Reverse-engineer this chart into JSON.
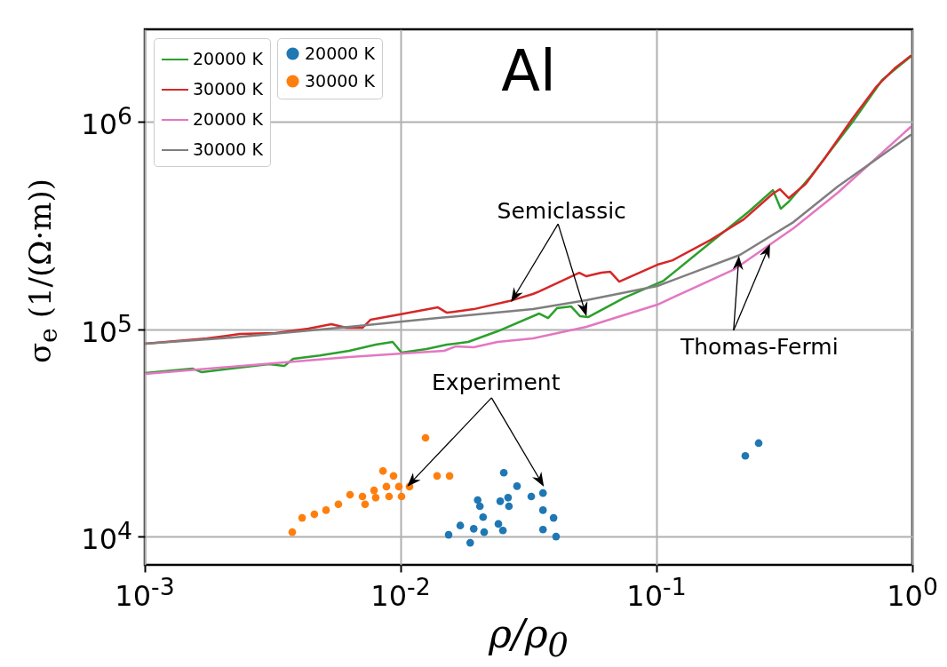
{
  "chart_data": {
    "type": "line",
    "title": "Al",
    "xlabel": "ρ/ρ$_{0}$",
    "ylabel": "σ$_{e}$ (1/(Ω·m))",
    "log": "xy",
    "grid": true,
    "legend": "top left",
    "xlim": [
      0.001,
      1
    ],
    "ylim": [
      7300,
      2790000
    ],
    "xticks": [
      {
        "value": 0.001,
        "label": "10$^{-3}$"
      },
      {
        "value": 0.01,
        "label": "10$^{-2}$"
      },
      {
        "value": 0.1,
        "label": "10$^{-1}$"
      },
      {
        "value": 1,
        "label": "10$^{0}$"
      }
    ],
    "yticks": [
      {
        "value": 10000,
        "label": "10$^{4}$"
      },
      {
        "value": 100000,
        "label": "10$^{5}$"
      },
      {
        "value": 1000000,
        "label": "10$^{6}$"
      }
    ],
    "annotations": [
      {
        "text": "Semiclassic",
        "x": 0.027,
        "y": 135000
      },
      {
        "text": "Experiment",
        "x": 0.0106,
        "y": 17400
      },
      {
        "text": "Thomas-Fermi",
        "x": 0.21,
        "y": 226000
      }
    ],
    "series": [
      {
        "name": "20000 K",
        "type": "line",
        "color": "#2ca02c",
        "x": [
          0.001,
          0.00154,
          0.00167,
          0.00217,
          0.00306,
          0.00351,
          0.0038,
          0.00483,
          0.00629,
          0.00799,
          0.00931,
          0.01008,
          0.01261,
          0.01516,
          0.01836,
          0.0239,
          0.0348,
          0.0377,
          0.0408,
          0.0464,
          0.0503,
          0.054,
          0.075,
          0.1066,
          0.1628,
          0.23,
          0.285,
          0.306,
          0.329,
          0.402,
          0.585,
          0.762,
          1.0
        ],
        "values": [
          61400,
          64500,
          62000,
          64500,
          67700,
          66400,
          71900,
          74700,
          78600,
          84200,
          86700,
          77000,
          80100,
          84200,
          86700,
          97600,
          118900,
          113100,
          126100,
          128600,
          115400,
          114200,
          141900,
          171200,
          261600,
          369400,
          467900,
          380400,
          411700,
          548100,
          1000000,
          1590000,
          2096000
        ]
      },
      {
        "name": "30000 K",
        "type": "line",
        "color": "#d62728",
        "x": [
          0.001,
          0.00175,
          0.00235,
          0.00324,
          0.00436,
          0.00536,
          0.00614,
          0.00709,
          0.00762,
          0.00992,
          0.01399,
          0.01516,
          0.0193,
          0.0265,
          0.0329,
          0.0348,
          0.0499,
          0.0532,
          0.0609,
          0.066,
          0.0715,
          0.1008,
          0.1155,
          0.1628,
          0.219,
          0.285,
          0.304,
          0.329,
          0.383,
          0.45,
          0.585,
          0.726,
          0.852,
          0.984
        ],
        "values": [
          85000,
          90200,
          94700,
          95700,
          100500,
          105600,
          101500,
          101500,
          110900,
          117700,
          127300,
          120000,
          124800,
          136400,
          147700,
          152100,
          187000,
          179800,
          187000,
          188900,
          169500,
          204400,
          214700,
          269400,
          337900,
          450000,
          472700,
          428200,
          501500,
          654300,
          1040000,
          1483000,
          1807000,
          2075000
        ]
      },
      {
        "name": "20000 K",
        "type": "line",
        "color": "#e377c2",
        "x": [
          0.001,
          0.00217,
          0.00629,
          0.01016,
          0.01479,
          0.01641,
          0.0193,
          0.0239,
          0.0329,
          0.0532,
          0.1008,
          0.202,
          0.343,
          0.511,
          0.984
        ],
        "values": [
          60800,
          65800,
          73300,
          76250,
          78600,
          82500,
          81800,
          86700,
          90200,
          102500,
          131200,
          194600,
          306300,
          454400,
          942600
        ]
      },
      {
        "name": "30000 K",
        "type": "line",
        "color": "#7f7f7f",
        "x": [
          0.001,
          0.00217,
          0.00629,
          0.01399,
          0.0329,
          0.0532,
          0.1008,
          0.212,
          0.343,
          0.511,
          0.984
        ],
        "values": [
          85000,
          91000,
          102500,
          113100,
          124800,
          137800,
          161400,
          227900,
          328100,
          486800,
          862600
        ]
      },
      {
        "name": "20000 K",
        "type": "scatter",
        "marker": "circle",
        "color": "#1f77b4",
        "x": [
          0.0154,
          0.0171,
          0.0187,
          0.0193,
          0.02,
          0.0204,
          0.021,
          0.0212,
          0.0241,
          0.0245,
          0.0251,
          0.0253,
          0.0263,
          0.0265,
          0.0285,
          0.0324,
          0.036,
          0.036,
          0.036,
          0.0396,
          0.0405,
          0.2224,
          0.2508
        ],
        "values": [
          10200,
          11300,
          9330,
          10900,
          15000,
          14000,
          12400,
          10500,
          11500,
          14800,
          10700,
          20300,
          15400,
          14000,
          17500,
          15600,
          16200,
          13400,
          10800,
          12300,
          10000,
          24500,
          28200
        ]
      },
      {
        "name": "30000 K",
        "type": "scatter",
        "marker": "circle",
        "color": "#ff7f0e",
        "x": [
          0.00377,
          0.00412,
          0.0046,
          0.00511,
          0.00571,
          0.00634,
          0.00709,
          0.00726,
          0.00787,
          0.00799,
          0.00853,
          0.00873,
          0.0088,
          0.00901,
          0.00938,
          0.00984,
          0.01008,
          0.01083,
          0.01251,
          0.01388,
          0.01553
        ],
        "values": [
          10500,
          12300,
          12800,
          13400,
          14300,
          15900,
          15600,
          14300,
          16700,
          15400,
          20700,
          null,
          17400,
          15600,
          19600,
          17400,
          15600,
          17400,
          29900,
          19600,
          19600
        ]
      }
    ]
  }
}
